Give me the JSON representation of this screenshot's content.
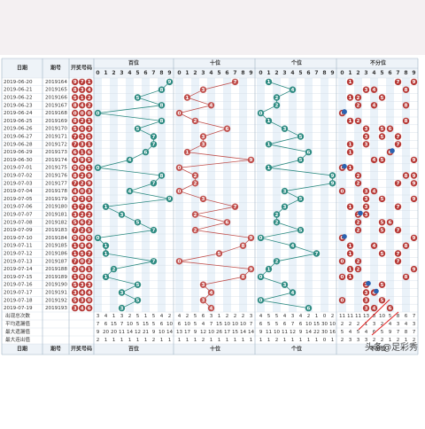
{
  "header": {
    "date": "日期",
    "issue": "期号",
    "winning": "开奖号码",
    "groups": [
      "百位",
      "十位",
      "个位",
      "不分位"
    ]
  },
  "digits": [
    0,
    1,
    2,
    3,
    4,
    5,
    6,
    7,
    8,
    9
  ],
  "rows": [
    {
      "date": "2019-06-20",
      "issue": "2019164",
      "hundreds": 9,
      "tens": 7,
      "units": 1
    },
    {
      "date": "2019-06-21",
      "issue": "2019165",
      "hundreds": 8,
      "tens": 3,
      "units": 4
    },
    {
      "date": "2019-06-22",
      "issue": "2019166",
      "hundreds": 5,
      "tens": 1,
      "units": 2
    },
    {
      "date": "2019-06-23",
      "issue": "2019167",
      "hundreds": 8,
      "tens": 4,
      "units": 2
    },
    {
      "date": "2019-06-24",
      "issue": "2019168",
      "hundreds": 0,
      "tens": 0,
      "units": 0
    },
    {
      "date": "2019-06-25",
      "issue": "2019169",
      "hundreds": 8,
      "tens": 2,
      "units": 1
    },
    {
      "date": "2019-06-26",
      "issue": "2019170",
      "hundreds": 5,
      "tens": 6,
      "units": 3
    },
    {
      "date": "2019-06-27",
      "issue": "2019171",
      "hundreds": 7,
      "tens": 3,
      "units": 5
    },
    {
      "date": "2019-06-28",
      "issue": "2019172",
      "hundreds": 7,
      "tens": 3,
      "units": 1
    },
    {
      "date": "2019-06-29",
      "issue": "2019173",
      "hundreds": 6,
      "tens": 1,
      "units": 6
    },
    {
      "date": "2019-06-30",
      "issue": "2019174",
      "hundreds": 4,
      "tens": 9,
      "units": 5
    },
    {
      "date": "2019-07-01",
      "issue": "2019175",
      "hundreds": 0,
      "tens": 0,
      "units": 1
    },
    {
      "date": "2019-07-02",
      "issue": "2019176",
      "hundreds": 8,
      "tens": 2,
      "units": 9
    },
    {
      "date": "2019-07-03",
      "issue": "2019177",
      "hundreds": 7,
      "tens": 2,
      "units": 9
    },
    {
      "date": "2019-07-04",
      "issue": "2019178",
      "hundreds": 4,
      "tens": 0,
      "units": 3
    },
    {
      "date": "2019-07-05",
      "issue": "2019179",
      "hundreds": 9,
      "tens": 3,
      "units": 5
    },
    {
      "date": "2019-07-06",
      "issue": "2019180",
      "hundreds": 1,
      "tens": 7,
      "units": 3
    },
    {
      "date": "2019-07-07",
      "issue": "2019181",
      "hundreds": 3,
      "tens": 2,
      "units": 2
    },
    {
      "date": "2019-07-08",
      "issue": "2019182",
      "hundreds": 5,
      "tens": 6,
      "units": 2
    },
    {
      "date": "2019-07-09",
      "issue": "2019183",
      "hundreds": 7,
      "tens": 2,
      "units": 5
    },
    {
      "date": "2019-07-10",
      "issue": "2019184",
      "hundreds": 0,
      "tens": 9,
      "units": 0
    },
    {
      "date": "2019-07-11",
      "issue": "2019185",
      "hundreds": 1,
      "tens": 8,
      "units": 4
    },
    {
      "date": "2019-07-12",
      "issue": "2019186",
      "hundreds": 1,
      "tens": 5,
      "units": 7
    },
    {
      "date": "2019-07-13",
      "issue": "2019187",
      "hundreds": 7,
      "tens": 0,
      "units": 2
    },
    {
      "date": "2019-07-14",
      "issue": "2019188",
      "hundreds": 2,
      "tens": 9,
      "units": 1
    },
    {
      "date": "2019-07-15",
      "issue": "2019189",
      "hundreds": 1,
      "tens": 8,
      "units": 0
    },
    {
      "date": "2019-07-16",
      "issue": "2019190",
      "hundreds": 5,
      "tens": 3,
      "units": 3
    },
    {
      "date": "2019-07-17",
      "issue": "2019191",
      "hundreds": 3,
      "tens": 4,
      "units": 4
    },
    {
      "date": "2019-07-18",
      "issue": "2019192",
      "hundreds": 5,
      "tens": 3,
      "units": 0
    },
    {
      "date": "2019-07-19",
      "issue": "2019193",
      "hundreds": 3,
      "tens": 4,
      "units": 6
    }
  ],
  "footer": {
    "labels": [
      "出现总次数",
      "平均遗漏值",
      "最大遗漏值",
      "最大连出值"
    ],
    "rows": [
      [
        3,
        4,
        1,
        3,
        2,
        5,
        1,
        5,
        4,
        2,
        4,
        2,
        5,
        6,
        3,
        1,
        2,
        2,
        2,
        3,
        4,
        5,
        5,
        4,
        3,
        4,
        2,
        1,
        0,
        2,
        11,
        11,
        11,
        13,
        8,
        10,
        5,
        8,
        6,
        7
      ],
      [
        7,
        6,
        15,
        7,
        10,
        5,
        15,
        5,
        6,
        10,
        6,
        10,
        5,
        4,
        7,
        15,
        10,
        10,
        10,
        7,
        6,
        5,
        5,
        6,
        7,
        6,
        10,
        15,
        30,
        10,
        2,
        2,
        2,
        1,
        3,
        2,
        4,
        3,
        4,
        3
      ],
      [
        9,
        20,
        20,
        11,
        14,
        12,
        21,
        9,
        10,
        14,
        13,
        17,
        9,
        12,
        10,
        26,
        17,
        15,
        14,
        14,
        9,
        11,
        10,
        11,
        12,
        9,
        14,
        22,
        30,
        16,
        5,
        4,
        5,
        4,
        6,
        5,
        9,
        7,
        8,
        7
      ],
      [
        2,
        1,
        1,
        1,
        1,
        1,
        1,
        2,
        1,
        1,
        1,
        1,
        1,
        2,
        1,
        1,
        1,
        1,
        1,
        1,
        1,
        1,
        2,
        1,
        1,
        1,
        1,
        1,
        0,
        1,
        2,
        3,
        3,
        3,
        2,
        2,
        1,
        2,
        1,
        2
      ]
    ]
  },
  "watermark": "头条@足彩秀"
}
